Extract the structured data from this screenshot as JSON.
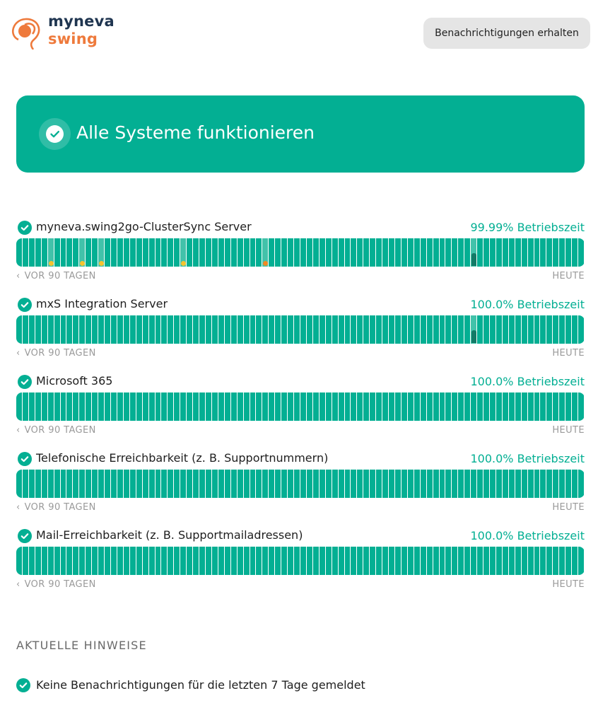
{
  "brand": {
    "line1": "myneva",
    "line2": "swing",
    "navy": "#1f3550",
    "orange": "#ee7a3c"
  },
  "header": {
    "subscribe_label": "Benachrichtigungen erhalten"
  },
  "status": {
    "text": "Alle Systeme funktionieren",
    "color": "#03af93"
  },
  "services": [
    {
      "name": "myneva.swing2go-ClusterSync Server",
      "uptime": "99.99% Betriebszeit",
      "from": "VOR 90 TAGEN",
      "to": "HEUTE",
      "incidents": [
        {
          "day": 5,
          "kind": "minor"
        },
        {
          "day": 10,
          "kind": "minor"
        },
        {
          "day": 13,
          "kind": "minor"
        },
        {
          "day": 26,
          "kind": "minor"
        },
        {
          "day": 39,
          "kind": "major"
        },
        {
          "day": 72,
          "kind": "maintenance"
        }
      ]
    },
    {
      "name": "mxS Integration Server",
      "uptime": "100.0% Betriebszeit",
      "from": "VOR 90 TAGEN",
      "to": "HEUTE",
      "incidents": [
        {
          "day": 72,
          "kind": "maintenance"
        }
      ]
    },
    {
      "name": "Microsoft 365",
      "uptime": "100.0% Betriebszeit",
      "from": "VOR 90 TAGEN",
      "to": "HEUTE",
      "incidents": []
    },
    {
      "name": "Telefonische Erreichbarkeit (z. B. Supportnummern)",
      "uptime": "100.0% Betriebszeit",
      "from": "VOR 90 TAGEN",
      "to": "HEUTE",
      "incidents": []
    },
    {
      "name": "Mail-Erreichbarkeit (z. B. Supportmailadressen)",
      "uptime": "100.0% Betriebszeit",
      "from": "VOR 90 TAGEN",
      "to": "HEUTE",
      "incidents": []
    }
  ],
  "bar_days": 90,
  "colors": {
    "ok": "#03af93",
    "minor": "#f4c430",
    "major": "#f08a24",
    "maintenance": "#137a66"
  },
  "notices": {
    "title": "AKTUELLE HINWEISE",
    "items": [
      "Keine Benachrichtigungen für die letzten 7 Tage gemeldet"
    ]
  }
}
